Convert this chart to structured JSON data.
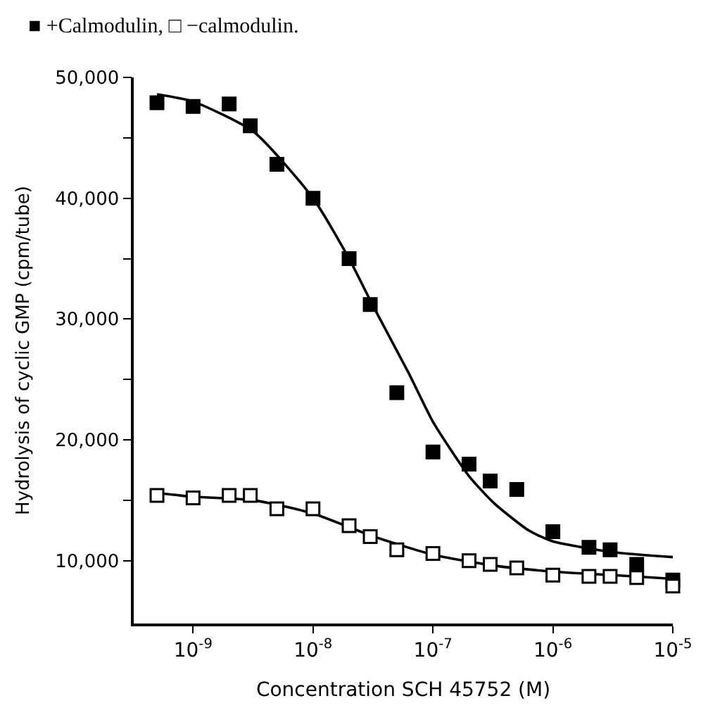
{
  "chart_data": {
    "type": "scatter",
    "title": "■ +Calmodulin, □ −calmodulin.",
    "xlabel": "Concentration SCH 45752 (M)",
    "ylabel": "Hydrolysis of cyclic GMP (cpm/tube)",
    "log": "x",
    "xlim": [
      3.2e-10,
      1e-05
    ],
    "ylim": [
      4800,
      50000
    ],
    "xticks": [
      {
        "value": 1e-09,
        "label": "10$^{-9}$"
      },
      {
        "value": 1e-08,
        "label": "10$^{-8}$"
      },
      {
        "value": 1e-07,
        "label": "10$^{-7}$"
      },
      {
        "value": 1e-06,
        "label": "10$^{-6}$"
      },
      {
        "value": 1e-05,
        "label": "10$^{-5}$"
      }
    ],
    "yticks": [
      {
        "value": 10000,
        "label": "10,000"
      },
      {
        "value": 15000,
        "label": null
      },
      {
        "value": 20000,
        "label": "20,000"
      },
      {
        "value": 25000,
        "label": null
      },
      {
        "value": 30000,
        "label": "30,000"
      },
      {
        "value": 35000,
        "label": null
      },
      {
        "value": 40000,
        "label": "40,000"
      },
      {
        "value": 45000,
        "label": null
      },
      {
        "value": 50000,
        "label": "50,000"
      }
    ],
    "x": [
      5e-10,
      1e-09,
      2e-09,
      3e-09,
      5e-09,
      1e-08,
      2e-08,
      3e-08,
      5e-08,
      1e-07,
      2e-07,
      3e-07,
      5e-07,
      1e-06,
      2e-06,
      3e-06,
      5e-06,
      1e-05
    ],
    "series": [
      {
        "marker": "square",
        "color": "#000000",
        "values": [
          47900,
          47600,
          47800,
          46000,
          42800,
          40000,
          35000,
          31200,
          23900,
          19000,
          18000,
          16600,
          15900,
          12400,
          11100,
          10900,
          9700,
          8400
        ]
      },
      {
        "marker": "square",
        "color": "#ffffff",
        "values": [
          15400,
          15200,
          15400,
          15400,
          14300,
          14300,
          12900,
          12000,
          10900,
          10600,
          10000,
          9700,
          9400,
          8800,
          8700,
          8700,
          8600,
          7900
        ]
      },
      {
        "type": "line",
        "color": "#000000",
        "line_style": "solid",
        "x": [
          5e-10,
          1e-09,
          3.2e-09,
          1e-08,
          2e-08,
          3.2e-08,
          6.3e-08,
          1e-07,
          2e-07,
          3.2e-07,
          6.3e-07,
          1e-06,
          3.2e-06,
          1e-05
        ],
        "values": [
          48600,
          48000,
          45500,
          40000,
          35000,
          31000,
          25500,
          21500,
          17000,
          14800,
          12500,
          11600,
          10700,
          10300
        ]
      },
      {
        "type": "line",
        "color": "#000000",
        "line_style": "solid",
        "x": [
          5e-10,
          1e-09,
          3.2e-09,
          1e-08,
          3.2e-08,
          1e-07,
          3.2e-07,
          1e-06,
          3.2e-06,
          1e-05
        ],
        "values": [
          15600,
          15300,
          15000,
          13900,
          12000,
          10500,
          9600,
          9100,
          8800,
          8500
        ]
      }
    ]
  }
}
